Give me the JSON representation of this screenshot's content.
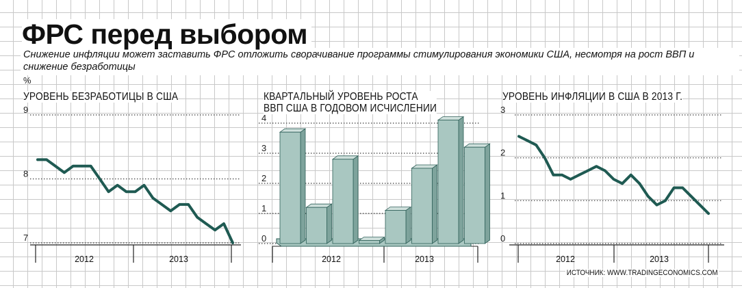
{
  "title": "ФРС перед выбором",
  "subtitle": "Снижение инфляции может заставить ФРС отложить сворачивание программы стимулирования экономики США, несмотря на рост ВВП и снижение безработицы",
  "unit_label": "%",
  "source": "ИСТОЧНИК: WWW.TRADINGECONOMICS.COM",
  "colors": {
    "line": "#1f5a52",
    "bar_front": "#a9c7c1",
    "bar_side": "#7ea39c",
    "bar_top": "#cfe0dc",
    "bar_edge": "#2e5f58"
  },
  "chart_data": [
    {
      "type": "line",
      "title": "УРОВЕНЬ БЕЗРАБОТИЦЫ В США",
      "xlabel": "",
      "ylabel": "%",
      "ylim": [
        7,
        9
      ],
      "yticks": [
        "9",
        "8",
        "7"
      ],
      "periods": [
        "2012",
        "2013"
      ],
      "grid": "dotted-horizontal",
      "series": [
        {
          "x": [
            "2012-01",
            "2012-02",
            "2012-03",
            "2012-04",
            "2012-05",
            "2012-06",
            "2012-07",
            "2012-08",
            "2012-09",
            "2012-10",
            "2012-11",
            "2012-12",
            "2013-01",
            "2013-02",
            "2013-03",
            "2013-04",
            "2013-05",
            "2013-06",
            "2013-07",
            "2013-08",
            "2013-09",
            "2013-10",
            "2013-11"
          ],
          "values": [
            8.3,
            8.3,
            8.2,
            8.1,
            8.2,
            8.2,
            8.2,
            8.0,
            7.8,
            7.9,
            7.8,
            7.8,
            7.9,
            7.7,
            7.6,
            7.5,
            7.6,
            7.6,
            7.4,
            7.3,
            7.2,
            7.3,
            7.0
          ]
        }
      ]
    },
    {
      "type": "bar",
      "title": "КВАРТАЛЬНЫЙ УРОВЕНЬ РОСТА\nВВП США В ГОДОВОМ ИСЧИСЛЕНИИ",
      "xlabel": "",
      "ylabel": "%",
      "ylim": [
        0,
        4
      ],
      "yticks": [
        "4",
        "3",
        "2",
        "1",
        "0"
      ],
      "periods": [
        "2012",
        "2013"
      ],
      "categories": [
        "2012 Q1",
        "2012 Q2",
        "2012 Q3",
        "2012 Q4",
        "2013 Q1",
        "2013 Q2",
        "2013 Q3",
        "2013 Q4"
      ],
      "values": [
        3.7,
        1.2,
        2.8,
        0.1,
        1.1,
        2.5,
        4.1,
        3.2
      ],
      "grid": "dotted-horizontal"
    },
    {
      "type": "line",
      "title": "УРОВЕНЬ ИНФЛЯЦИИ В США В 2013 Г.",
      "xlabel": "",
      "ylabel": "%",
      "ylim": [
        0,
        3
      ],
      "yticks": [
        "3",
        "2",
        "1",
        "0"
      ],
      "periods": [
        "2012",
        "2013"
      ],
      "grid": "dotted-horizontal",
      "series": [
        {
          "x": [
            "2012-01",
            "2012-02",
            "2012-03",
            "2012-04",
            "2012-05",
            "2012-06",
            "2012-07",
            "2012-08",
            "2012-09",
            "2012-10",
            "2012-11",
            "2012-12",
            "2013-01",
            "2013-02",
            "2013-03",
            "2013-04",
            "2013-05",
            "2013-06",
            "2013-07",
            "2013-08",
            "2013-09",
            "2013-10",
            "2013-11"
          ],
          "values": [
            2.5,
            2.4,
            2.3,
            2.0,
            1.6,
            1.6,
            1.5,
            1.6,
            1.7,
            1.8,
            1.7,
            1.5,
            1.4,
            1.6,
            1.4,
            1.1,
            0.9,
            1.0,
            1.3,
            1.3,
            1.1,
            0.9,
            0.7
          ]
        }
      ]
    }
  ]
}
